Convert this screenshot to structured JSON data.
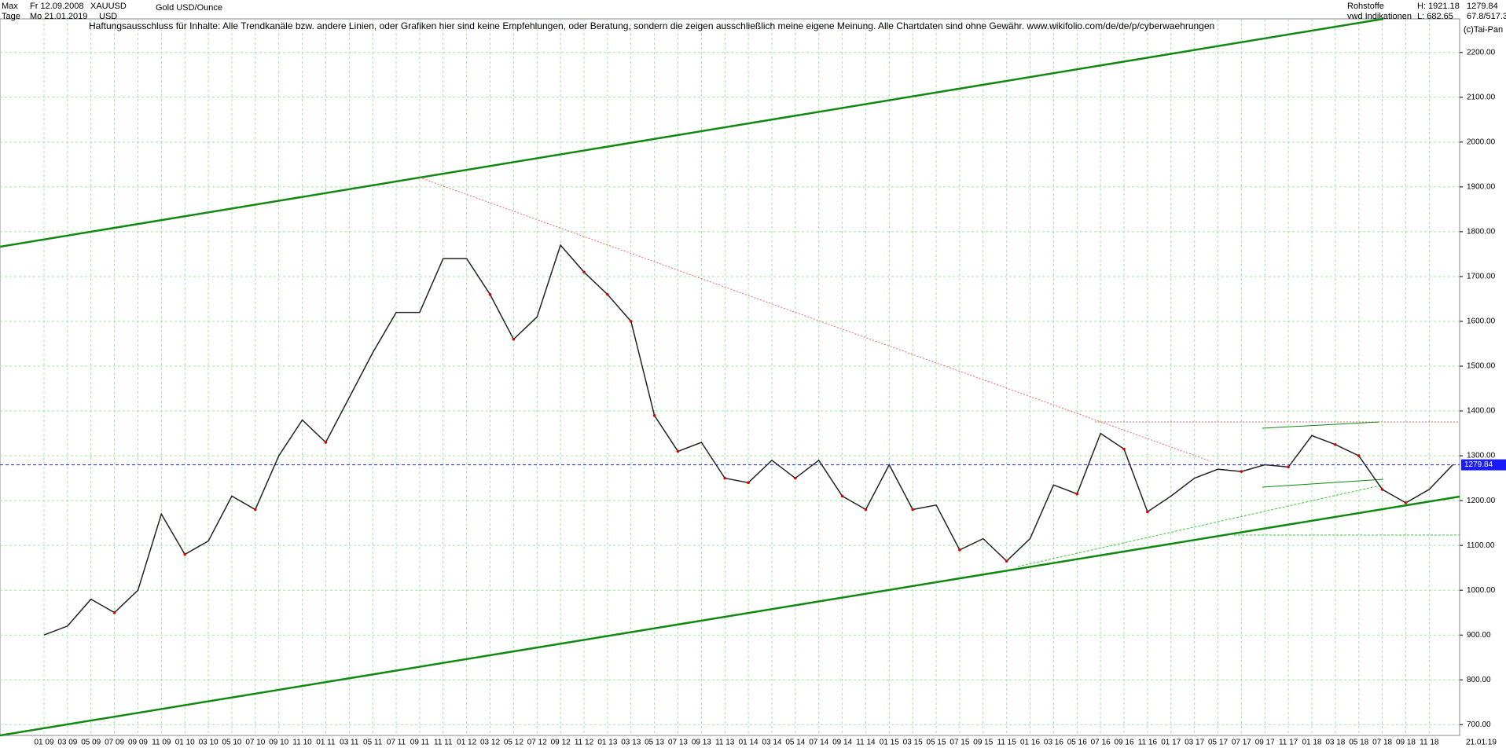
{
  "chart_data": {
    "type": "line",
    "header": {
      "period": "Max",
      "start": "Fr 12.09.2008",
      "symbol": "XAUUSD",
      "name": "Gold USD/Ounce",
      "unit_period": "Tage",
      "end": "Mo 21.01.2019",
      "currency": "USD",
      "disclaimer": "Haftungsausschluss für Inhalte: Alle Trendkanäle bzw. andere Linien, oder Grafiken hier sind keine Empfehlungen, oder Beratung, sondern die zeigen ausschließlich meine eigene Meinung. Alle Chartdaten sind ohne Gewähr.  www.wikifolio.com/de/de/p/cyberwaehrungen",
      "group": "Rohstoffe",
      "source": "vwd Indikationen",
      "high": "H: 1921.18",
      "low": "L: 682.65",
      "ratio": "67.8/517.3",
      "copyright": "(c)Tai-Pan"
    },
    "categories": [
      "01 09",
      "03 09",
      "05 09",
      "07 09",
      "09 09",
      "11 09",
      "01 10",
      "03 10",
      "05 10",
      "07 10",
      "09 10",
      "11 10",
      "01 11",
      "03 11",
      "05 11",
      "07 11",
      "09 11",
      "11 11",
      "01 12",
      "03 12",
      "05 12",
      "07 12",
      "09 12",
      "11 12",
      "01 13",
      "03 13",
      "05 13",
      "07 13",
      "09 13",
      "11 13",
      "01 14",
      "03 14",
      "05 14",
      "07 14",
      "09 14",
      "11 14",
      "01 15",
      "03 15",
      "05 15",
      "07 15",
      "09 15",
      "11 15",
      "01 16",
      "03 16",
      "05 16",
      "07 16",
      "09 16",
      "11 16",
      "01 17",
      "03 17",
      "05 17",
      "07 17",
      "09 17",
      "11 17",
      "01 18",
      "03 18",
      "05 18",
      "07 18",
      "09 18",
      "11 18",
      "21.01.19"
    ],
    "series": [
      {
        "name": "XAUUSD",
        "color": "#222222",
        "values": [
          900,
          920,
          980,
          950,
          1000,
          1170,
          1080,
          1110,
          1210,
          1180,
          1300,
          1380,
          1330,
          1430,
          1530,
          1620,
          1620,
          1740,
          1740,
          1660,
          1560,
          1610,
          1770,
          1710,
          1660,
          1600,
          1390,
          1310,
          1330,
          1250,
          1240,
          1290,
          1250,
          1290,
          1210,
          1180,
          1280,
          1180,
          1190,
          1090,
          1115,
          1065,
          1115,
          1235,
          1215,
          1350,
          1315,
          1175,
          1210,
          1250,
          1270,
          1265,
          1280,
          1275,
          1345,
          1325,
          1300,
          1225,
          1195,
          1225,
          1279.84
        ]
      }
    ],
    "ylim": [
      676,
      2275
    ],
    "yticks": [
      {
        "value": 700,
        "label": "700.00"
      },
      {
        "value": 800,
        "label": "800.00"
      },
      {
        "value": 900,
        "label": "900.00"
      },
      {
        "value": 1000,
        "label": "1000.00"
      },
      {
        "value": 1100,
        "label": "1100.00"
      },
      {
        "value": 1200,
        "label": "1200.00"
      },
      {
        "value": 1300,
        "label": "1300.00"
      },
      {
        "value": 1400,
        "label": "1400.00"
      },
      {
        "value": 1500,
        "label": "1500.00"
      },
      {
        "value": 1600,
        "label": "1600.00"
      },
      {
        "value": 1700,
        "label": "1700.00"
      },
      {
        "value": 1800,
        "label": "1800.00"
      },
      {
        "value": 1900,
        "label": "1900.00"
      },
      {
        "value": 2000,
        "label": "2000.00"
      },
      {
        "value": 2100,
        "label": "2100.00"
      },
      {
        "value": 2200,
        "label": "2200.00"
      }
    ],
    "grid": true,
    "current_color": "#1a1aff"
  }
}
